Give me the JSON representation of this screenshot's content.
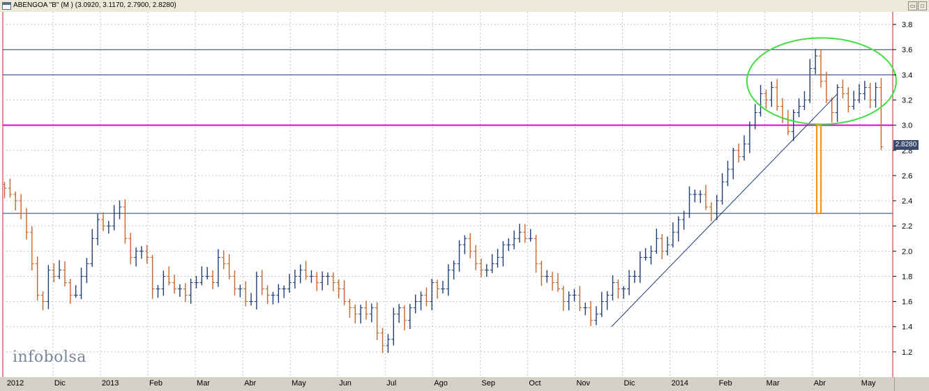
{
  "window": {
    "title": "ABENGOA \"B\" (M ) (3.0920, 3.1170, 2.7900, 2.8280)",
    "restore_label": "▭",
    "maximize_label": "□"
  },
  "logo": {
    "text": "infobolsa"
  },
  "chart_data": {
    "type": "ohlc-bar",
    "title": "ABENGOA \"B\" (M )",
    "last": {
      "open": 3.092,
      "high": 3.117,
      "low": 2.79,
      "close": 2.828,
      "label": "2.8280"
    },
    "ylim": [
      1.0,
      3.9
    ],
    "yticks": [
      "1.2",
      "1.4",
      "1.6",
      "1.8",
      "2.0",
      "2.2",
      "2.4",
      "2.6",
      "2.8",
      "3.0",
      "3.2",
      "3.4",
      "3.6",
      "3.8"
    ],
    "xlabels": [
      "2012",
      "Dic",
      "2013",
      "Feb",
      "Mar",
      "Abr",
      "May",
      "Jun",
      "Jul",
      "Ago",
      "Sep",
      "Oct",
      "Nov",
      "Dic",
      "2014",
      "Feb",
      "Mar",
      "Abr",
      "May"
    ],
    "grid": true,
    "closes": [
      2.5,
      2.45,
      2.4,
      2.3,
      2.15,
      1.9,
      1.65,
      1.6,
      1.85,
      1.8,
      1.85,
      1.75,
      1.65,
      1.65,
      1.8,
      1.9,
      2.1,
      2.25,
      2.2,
      2.2,
      2.3,
      2.35,
      2.1,
      1.95,
      2.0,
      2.0,
      1.95,
      1.7,
      1.7,
      1.8,
      1.75,
      1.7,
      1.7,
      1.65,
      1.75,
      1.75,
      1.8,
      1.8,
      1.75,
      1.95,
      1.9,
      1.8,
      1.7,
      1.7,
      1.6,
      1.6,
      1.8,
      1.7,
      1.65,
      1.65,
      1.7,
      1.7,
      1.75,
      1.8,
      1.85,
      1.8,
      1.8,
      1.75,
      1.8,
      1.8,
      1.75,
      1.7,
      1.6,
      1.55,
      1.5,
      1.55,
      1.5,
      1.55,
      1.35,
      1.25,
      1.3,
      1.5,
      1.55,
      1.45,
      1.55,
      1.6,
      1.65,
      1.6,
      1.75,
      1.7,
      1.7,
      1.85,
      1.9,
      2.05,
      2.1,
      2.0,
      1.9,
      1.85,
      1.85,
      1.9,
      1.95,
      2.05,
      2.05,
      2.1,
      2.15,
      2.1,
      2.1,
      1.9,
      1.8,
      1.8,
      1.75,
      1.7,
      1.6,
      1.65,
      1.65,
      1.55,
      1.55,
      1.45,
      1.5,
      1.6,
      1.65,
      1.75,
      1.7,
      1.7,
      1.8,
      1.8,
      1.95,
      1.95,
      2.0,
      2.1,
      2.0,
      2.05,
      2.15,
      2.25,
      2.3,
      2.45,
      2.45,
      2.45,
      2.35,
      2.3,
      2.4,
      2.55,
      2.65,
      2.8,
      2.75,
      2.85,
      3.0,
      3.1,
      3.25,
      3.2,
      3.3,
      3.15,
      3.05,
      2.95,
      3.1,
      3.15,
      3.2,
      3.45,
      3.55,
      3.35,
      3.2,
      3.1,
      3.3,
      3.25,
      3.15,
      3.2,
      3.25,
      3.3,
      3.2,
      3.3,
      2.828
    ],
    "annotations": {
      "horizontal_lines": [
        {
          "y": 3.6,
          "color": "#1e3c78"
        },
        {
          "y": 3.4,
          "color": "#1e3c78"
        },
        {
          "y": 3.0,
          "color": "#e000e0"
        },
        {
          "y": 2.3,
          "color": "#1e3c78"
        }
      ],
      "trendlines": [
        {
          "from": [
            0.684,
            1.4
          ],
          "to": [
            0.938,
            3.25
          ],
          "color": "#1e3c78"
        }
      ],
      "ellipse": {
        "center": [
          3.35,
          0.92
        ],
        "color": "#44dd44"
      },
      "projection_bar": {
        "x": 0.917,
        "from": 3.0,
        "to": 2.3,
        "color": "#f09010"
      }
    }
  }
}
